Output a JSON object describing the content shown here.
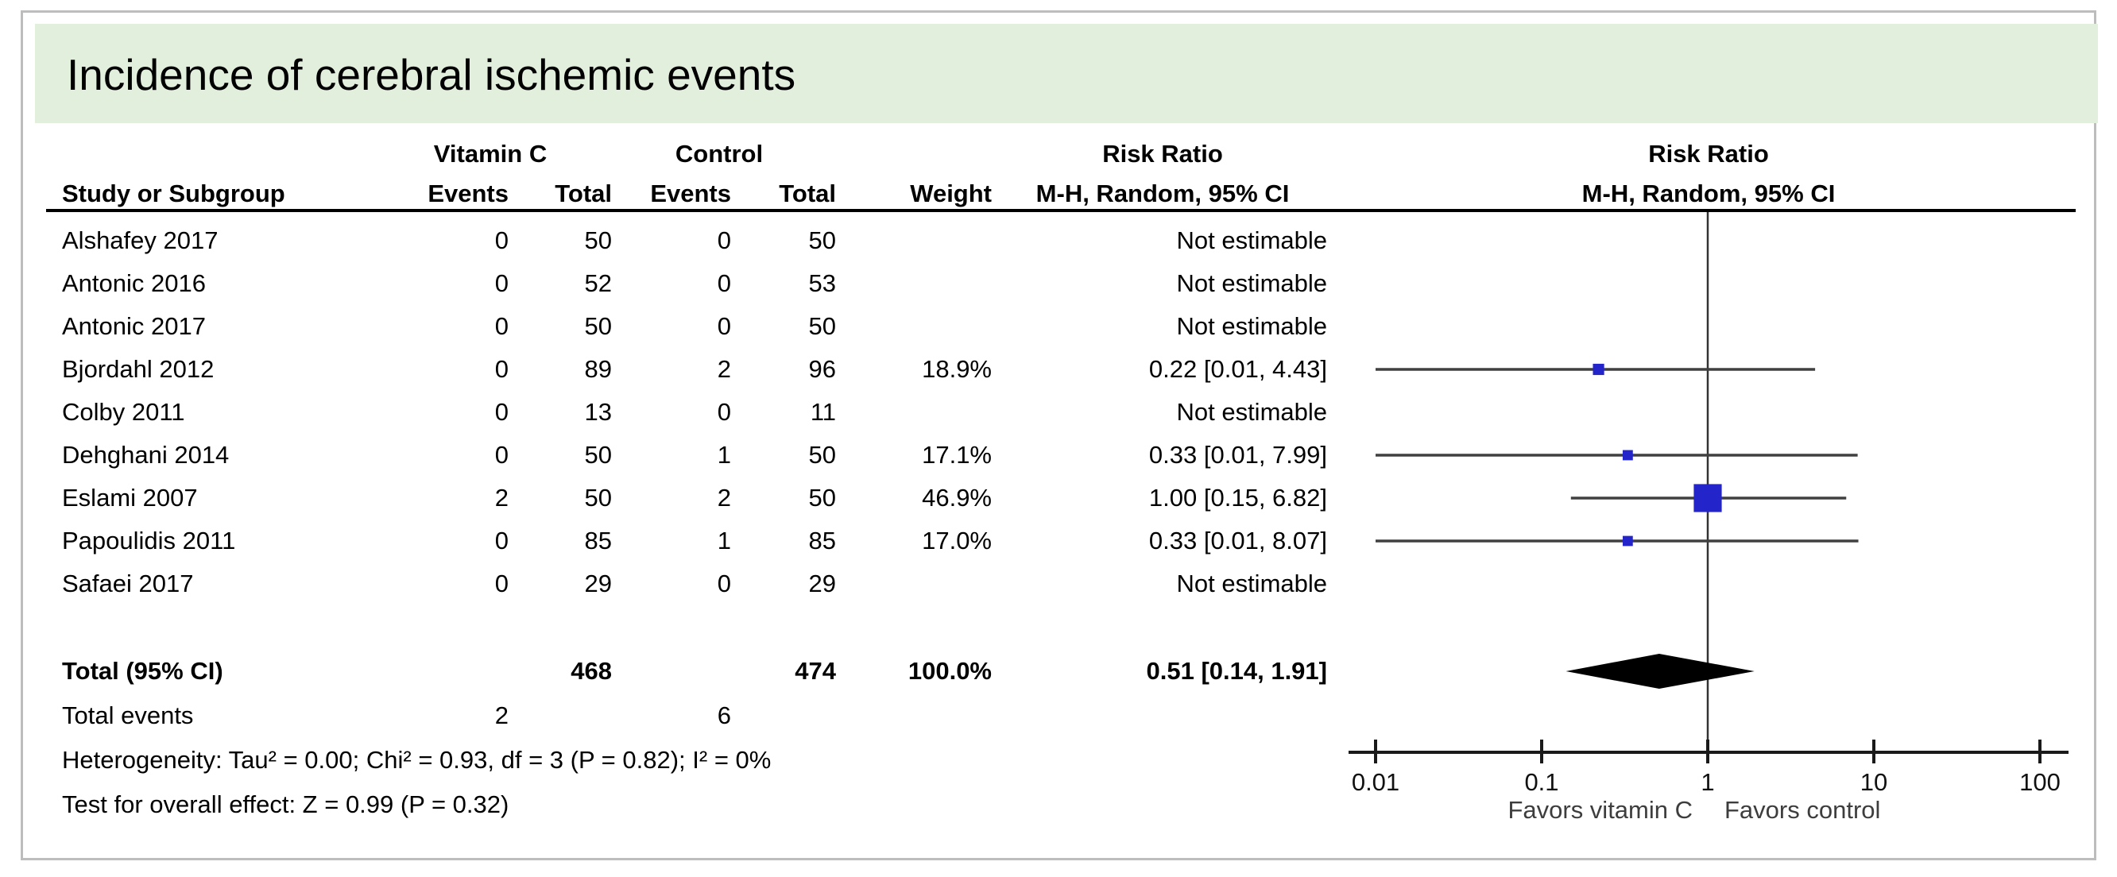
{
  "title": "Incidence of cerebral ischemic events",
  "table": {
    "group_headers": {
      "vitamin_c": "Vitamin C",
      "control": "Control",
      "risk_ratio_left": "Risk Ratio",
      "risk_ratio_right": "Risk Ratio"
    },
    "column_headers": {
      "study": "Study or Subgroup",
      "events_vitc": "Events",
      "total_vitc": "Total",
      "events_control": "Events",
      "total_control": "Total",
      "weight": "Weight",
      "mh_left": "M-H, Random, 95% CI",
      "mh_right": "M-H, Random, 95% CI"
    },
    "rows": [
      {
        "study": "Alshafey 2017",
        "events_vitc": "0",
        "total_vitc": "50",
        "events_control": "0",
        "total_control": "50",
        "weight": "",
        "risk_ratio": "Not estimable"
      },
      {
        "study": "Antonic 2016",
        "events_vitc": "0",
        "total_vitc": "52",
        "events_control": "0",
        "total_control": "53",
        "weight": "",
        "risk_ratio": "Not estimable"
      },
      {
        "study": "Antonic 2017",
        "events_vitc": "0",
        "total_vitc": "50",
        "events_control": "0",
        "total_control": "50",
        "weight": "",
        "risk_ratio": "Not estimable"
      },
      {
        "study": "Bjordahl 2012",
        "events_vitc": "0",
        "total_vitc": "89",
        "events_control": "2",
        "total_control": "96",
        "weight": "18.9%",
        "risk_ratio": "0.22 [0.01, 4.43]"
      },
      {
        "study": "Colby 2011",
        "events_vitc": "0",
        "total_vitc": "13",
        "events_control": "0",
        "total_control": "11",
        "weight": "",
        "risk_ratio": "Not estimable"
      },
      {
        "study": "Dehghani 2014",
        "events_vitc": "0",
        "total_vitc": "50",
        "events_control": "1",
        "total_control": "50",
        "weight": "17.1%",
        "risk_ratio": "0.33 [0.01, 7.99]"
      },
      {
        "study": "Eslami 2007",
        "events_vitc": "2",
        "total_vitc": "50",
        "events_control": "2",
        "total_control": "50",
        "weight": "46.9%",
        "risk_ratio": "1.00 [0.15, 6.82]"
      },
      {
        "study": "Papoulidis 2011",
        "events_vitc": "0",
        "total_vitc": "85",
        "events_control": "1",
        "total_control": "85",
        "weight": "17.0%",
        "risk_ratio": "0.33 [0.01, 8.07]"
      },
      {
        "study": "Safaei 2017",
        "events_vitc": "0",
        "total_vitc": "29",
        "events_control": "0",
        "total_control": "29",
        "weight": "",
        "risk_ratio": "Not estimable"
      }
    ],
    "total_row": {
      "label": "Total (95% CI)",
      "total_vitc": "468",
      "total_control": "474",
      "weight": "100.0%",
      "risk_ratio": "0.51 [0.14, 1.91]"
    },
    "total_events_row": {
      "label": "Total events",
      "events_vitc": "2",
      "events_control": "6"
    },
    "heterogeneity": "Heterogeneity: Tau² = 0.00; Chi² = 0.93, df = 3 (P = 0.82); I² = 0%",
    "overall_effect": "Test for overall effect: Z = 0.99 (P = 0.32)"
  },
  "chart_data": {
    "type": "forest",
    "x_scale": "log10",
    "x_range": [
      0.01,
      100
    ],
    "x_ticks": [
      0.01,
      0.1,
      1,
      10,
      100
    ],
    "x_tick_labels": [
      "0.01",
      "0.1",
      "1",
      "10",
      "100"
    ],
    "null_line": 1,
    "effect_measure": "Risk Ratio, M-H, Random, 95% CI",
    "studies": [
      {
        "name": "Bjordahl 2012",
        "rr": 0.22,
        "ci_low": 0.01,
        "ci_high": 4.43,
        "weight_pct": 18.9
      },
      {
        "name": "Dehghani 2014",
        "rr": 0.33,
        "ci_low": 0.01,
        "ci_high": 7.99,
        "weight_pct": 17.1
      },
      {
        "name": "Eslami 2007",
        "rr": 1.0,
        "ci_low": 0.15,
        "ci_high": 6.82,
        "weight_pct": 46.9
      },
      {
        "name": "Papoulidis 2011",
        "rr": 0.33,
        "ci_low": 0.01,
        "ci_high": 8.07,
        "weight_pct": 17.0
      }
    ],
    "overall": {
      "rr": 0.51,
      "ci_low": 0.14,
      "ci_high": 1.91
    },
    "favors_left": "Favors vitamin C",
    "favors_right": "Favors control",
    "marker_color": "#2424cb",
    "diamond_color": "#000000",
    "line_color": "#404040",
    "axis_color": "#1a1a1a"
  },
  "colors": {
    "title_bg": "#e1efdc",
    "frame_border": "#bdbdbd"
  }
}
